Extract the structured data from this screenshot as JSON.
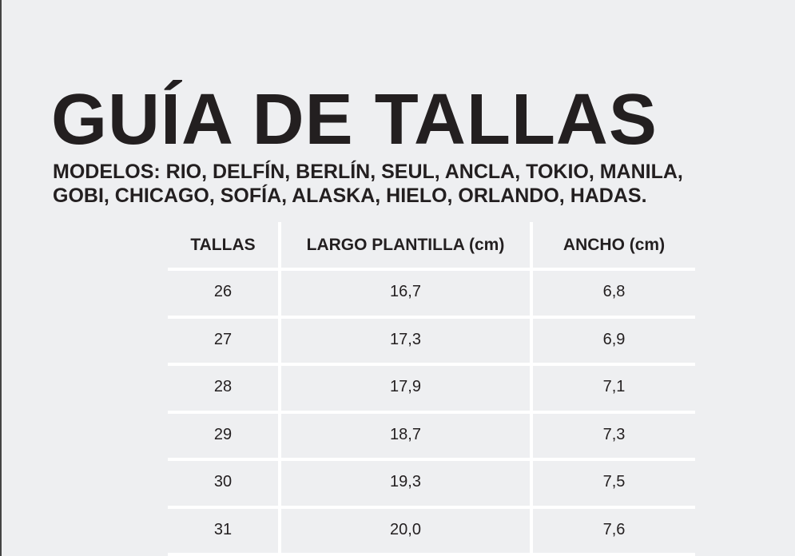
{
  "header": {
    "title": "GUÍA DE TALLAS",
    "subtitle": [
      "MODELOS: RIO, DELFÍN, BERLÍN, SEUL, ANCLA, TOKIO, MANILA,",
      "GOBI, CHICAGO, SOFÍA, ALASKA, HIELO, ORLANDO, HADAS."
    ]
  },
  "table": {
    "columns": [
      "TALLAS",
      "LARGO PLANTILLA (cm)",
      "ANCHO (cm)"
    ],
    "rows": [
      [
        "26",
        "16,7",
        "6,8"
      ],
      [
        "27",
        "17,3",
        "6,9"
      ],
      [
        "28",
        "17,9",
        "7,1"
      ],
      [
        "29",
        "18,7",
        "7,3"
      ],
      [
        "30",
        "19,3",
        "7,5"
      ],
      [
        "31",
        "20,0",
        "7,6"
      ]
    ]
  }
}
